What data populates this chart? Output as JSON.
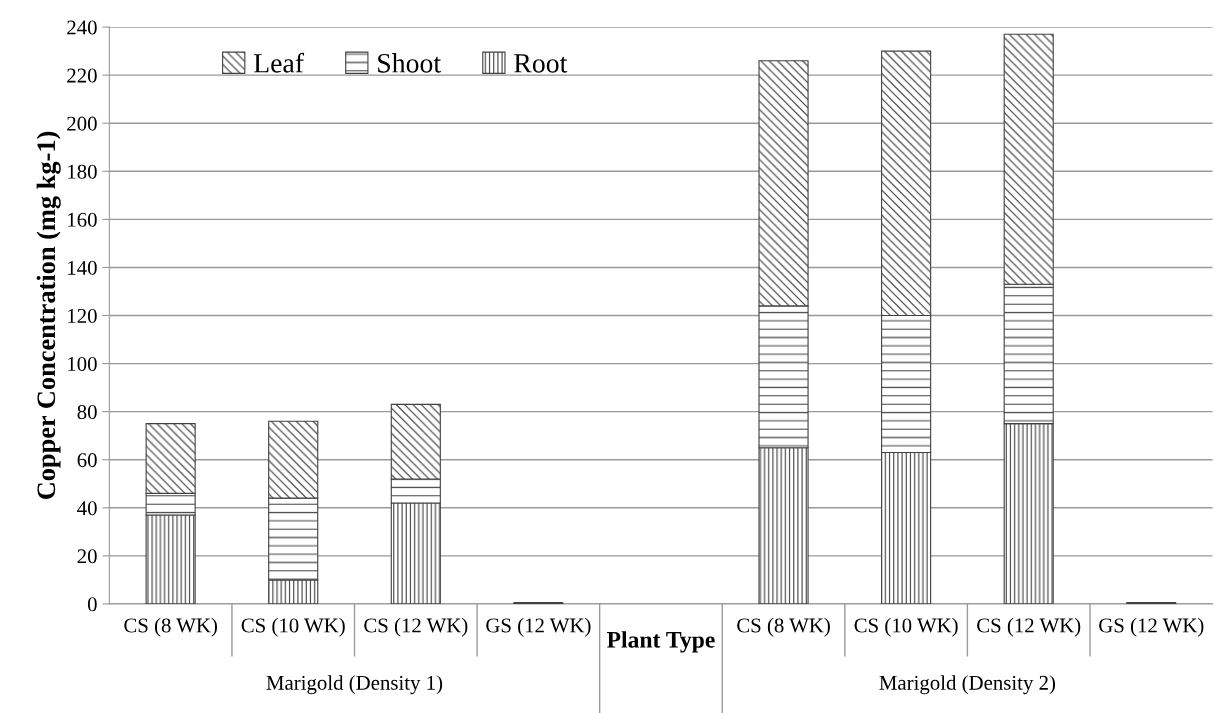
{
  "chart_data": {
    "type": "bar",
    "stacked": true,
    "xlabel": "Plant Type",
    "ylabel": "Copper Concentration (mg kg-1)",
    "categories": [
      "CS (8 WK)",
      "CS (10 WK)",
      "CS (12 WK)",
      "GS (12 WK)",
      null,
      "CS (8 WK)",
      "CS (10 WK)",
      "CS (12 WK)",
      "GS (12 WK)"
    ],
    "series": [
      {
        "name": "Root",
        "color": "#404040",
        "values": [
          37,
          10,
          42,
          0.5,
          null,
          65,
          63,
          75,
          0.5
        ]
      },
      {
        "name": "Shoot",
        "color": "#404040",
        "values": [
          9,
          34,
          10,
          0,
          null,
          59,
          57,
          58,
          0
        ]
      },
      {
        "name": "Leaf",
        "color": "#404040",
        "values": [
          29,
          32,
          31,
          0,
          null,
          102,
          110,
          104,
          0
        ]
      }
    ],
    "annotations": [
      "Marigold (Density 1)",
      "Marigold (Density 2)"
    ],
    "ylim": [
      0,
      240
    ],
    "yticks": [
      0,
      20,
      40,
      60,
      80,
      100,
      120,
      140,
      160,
      180,
      200,
      220,
      240
    ],
    "grid": "y",
    "legend": "top left"
  }
}
